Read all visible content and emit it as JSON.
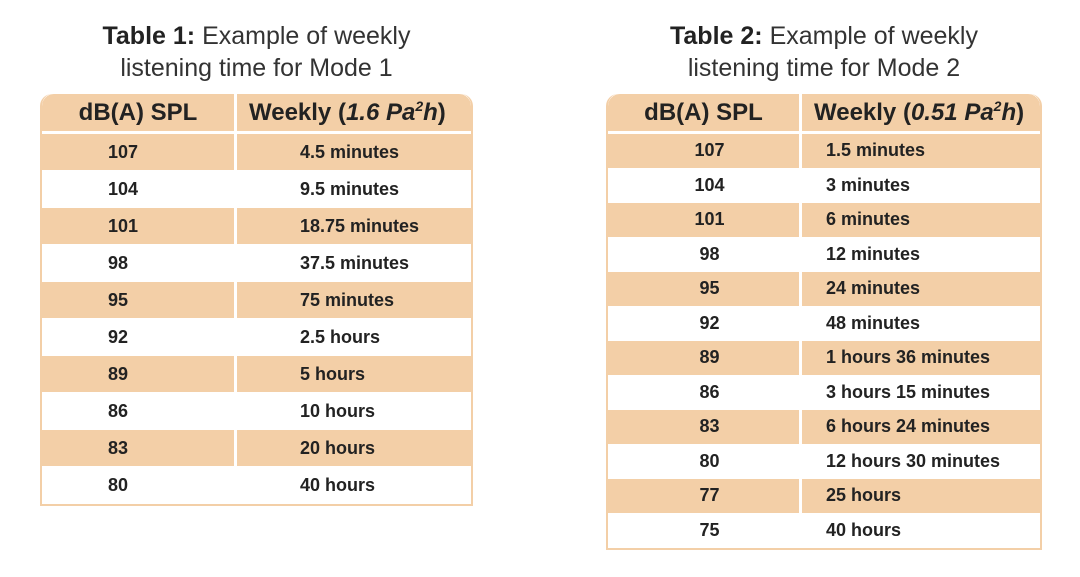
{
  "table1": {
    "caption_bold": "Table 1:",
    "caption_rest": "Example of weekly",
    "caption_line2": "listening time for Mode 1",
    "col1_header": "dB(A) SPL",
    "col2_header_prefix": "Weekly (",
    "col2_header_value": "1.6 Pa",
    "col2_header_sup": "2",
    "col2_header_unit": "h",
    "col2_header_suffix": " )",
    "rows": [
      {
        "spl": "107",
        "time": "4.5 minutes"
      },
      {
        "spl": "104",
        "time": "9.5 minutes"
      },
      {
        "spl": "101",
        "time": "18.75 minutes"
      },
      {
        "spl": "98",
        "time": "37.5 minutes"
      },
      {
        "spl": "95",
        "time": "75 minutes"
      },
      {
        "spl": "92",
        "time": "2.5 hours"
      },
      {
        "spl": "89",
        "time": "5 hours"
      },
      {
        "spl": "86",
        "time": "10 hours"
      },
      {
        "spl": "83",
        "time": "20 hours"
      },
      {
        "spl": "80",
        "time": "40 hours"
      }
    ]
  },
  "table2": {
    "caption_bold": "Table 2:",
    "caption_rest": "Example of weekly",
    "caption_line2": "listening time for Mode 2",
    "col1_header": "dB(A) SPL",
    "col2_header_prefix": "Weekly (",
    "col2_header_value": "0.51 Pa",
    "col2_header_sup": "2",
    "col2_header_unit": "h",
    "col2_header_suffix": " )",
    "rows": [
      {
        "spl": "107",
        "time": "1.5 minutes"
      },
      {
        "spl": "104",
        "time": "3 minutes"
      },
      {
        "spl": "101",
        "time": "6 minutes"
      },
      {
        "spl": "98",
        "time": "12 minutes"
      },
      {
        "spl": "95",
        "time": "24 minutes"
      },
      {
        "spl": "92",
        "time": "48 minutes"
      },
      {
        "spl": "89",
        "time": "1 hours 36 minutes"
      },
      {
        "spl": "86",
        "time": "3 hours 15 minutes"
      },
      {
        "spl": "83",
        "time": "6 hours 24 minutes"
      },
      {
        "spl": "80",
        "time": "12 hours 30 minutes"
      },
      {
        "spl": "77",
        "time": "25 hours"
      },
      {
        "spl": "75",
        "time": "40 hours"
      }
    ]
  },
  "colors": {
    "header_fill": "#f3cfa7",
    "row_shade": "#f3cfa7",
    "row_plain": "#ffffff",
    "text": "#222222"
  }
}
